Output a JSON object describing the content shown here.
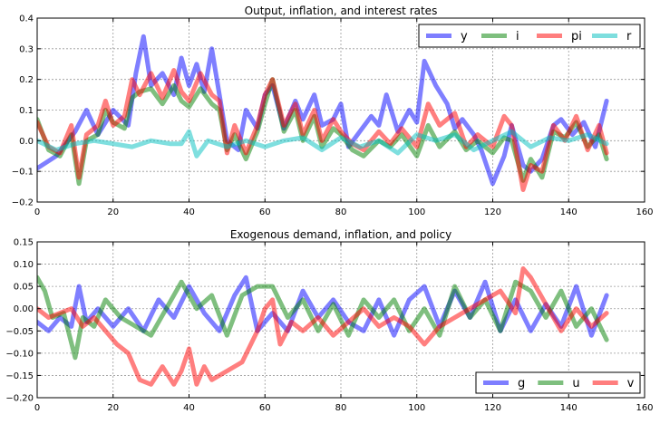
{
  "chart_data": [
    {
      "type": "line",
      "title": "Output, inflation, and interest rates",
      "xlim": [
        0,
        160
      ],
      "ylim": [
        -0.2,
        0.4
      ],
      "xticks": [
        0,
        20,
        40,
        60,
        80,
        100,
        120,
        140,
        160
      ],
      "yticks": [
        -0.2,
        -0.1,
        0.0,
        0.1,
        0.2,
        0.3,
        0.4
      ],
      "xtick_labels": [
        "0",
        "20",
        "40",
        "60",
        "80",
        "100",
        "120",
        "140",
        "160"
      ],
      "ytick_labels": [
        "−0.2",
        "−0.1",
        "0.0",
        "0.1",
        "0.2",
        "0.3",
        "0.4"
      ],
      "grid": true,
      "legend_position": "top-right",
      "series": [
        {
          "name": "y",
          "color": "#0000ff",
          "x": [
            0,
            5,
            10,
            13,
            16,
            20,
            24,
            26,
            28,
            30,
            33,
            36,
            38,
            40,
            42,
            44,
            46,
            50,
            53,
            55,
            58,
            60,
            62,
            65,
            68,
            70,
            73,
            75,
            78,
            80,
            82,
            85,
            88,
            90,
            92,
            95,
            98,
            100,
            102,
            105,
            108,
            110,
            112,
            115,
            117,
            120,
            123,
            125,
            128,
            130,
            133,
            136,
            138,
            141,
            144,
            147,
            150
          ],
          "y": [
            -0.09,
            -0.05,
            0.03,
            0.1,
            0.02,
            0.1,
            0.05,
            0.22,
            0.34,
            0.18,
            0.22,
            0.15,
            0.27,
            0.18,
            0.25,
            0.16,
            0.3,
            0.0,
            -0.03,
            0.1,
            0.04,
            0.15,
            0.18,
            0.04,
            0.13,
            0.07,
            0.15,
            0.05,
            0.07,
            0.12,
            -0.02,
            0.03,
            0.08,
            0.05,
            0.15,
            0.03,
            0.1,
            0.06,
            0.26,
            0.18,
            0.12,
            0.04,
            0.07,
            0.02,
            -0.03,
            -0.14,
            -0.05,
            0.05,
            -0.08,
            -0.1,
            -0.06,
            0.05,
            0.07,
            0.02,
            0.06,
            -0.02,
            0.13
          ]
        },
        {
          "name": "i",
          "color": "#008000",
          "x": [
            0,
            3,
            6,
            9,
            11,
            13,
            16,
            18,
            20,
            23,
            25,
            27,
            30,
            33,
            36,
            38,
            40,
            43,
            46,
            48,
            50,
            52,
            55,
            58,
            60,
            62,
            65,
            68,
            70,
            73,
            75,
            78,
            80,
            83,
            86,
            90,
            93,
            96,
            100,
            103,
            106,
            110,
            113,
            116,
            120,
            123,
            125,
            128,
            130,
            133,
            136,
            139,
            142,
            145,
            148,
            150
          ],
          "y": [
            0.07,
            -0.03,
            -0.05,
            0.02,
            -0.14,
            0.0,
            0.02,
            0.1,
            0.06,
            0.04,
            0.14,
            0.16,
            0.17,
            0.12,
            0.18,
            0.13,
            0.11,
            0.17,
            0.12,
            0.1,
            -0.03,
            0.02,
            -0.06,
            0.03,
            0.12,
            0.2,
            0.03,
            0.1,
            0.0,
            0.08,
            -0.02,
            0.04,
            0.02,
            -0.03,
            -0.05,
            0.0,
            -0.02,
            0.02,
            -0.05,
            0.05,
            -0.02,
            0.03,
            -0.03,
            0.0,
            -0.04,
            0.01,
            0.0,
            -0.13,
            -0.06,
            -0.12,
            0.03,
            0.01,
            0.06,
            -0.02,
            0.02,
            -0.06
          ]
        },
        {
          "name": "pi",
          "color": "#ff0000",
          "x": [
            0,
            3,
            6,
            9,
            11,
            13,
            16,
            18,
            20,
            23,
            25,
            27,
            30,
            33,
            36,
            38,
            40,
            43,
            46,
            48,
            50,
            52,
            55,
            58,
            60,
            62,
            65,
            68,
            70,
            73,
            75,
            78,
            80,
            83,
            86,
            90,
            93,
            96,
            100,
            103,
            106,
            110,
            113,
            116,
            120,
            123,
            125,
            128,
            130,
            133,
            136,
            139,
            142,
            145,
            148,
            150
          ],
          "y": [
            0.06,
            -0.02,
            -0.04,
            0.05,
            -0.12,
            0.02,
            0.05,
            0.13,
            0.05,
            0.08,
            0.2,
            0.15,
            0.22,
            0.14,
            0.23,
            0.16,
            0.13,
            0.22,
            0.15,
            0.13,
            -0.04,
            0.05,
            -0.04,
            0.05,
            0.15,
            0.2,
            0.05,
            0.12,
            0.02,
            0.1,
            0.0,
            0.07,
            0.03,
            -0.01,
            -0.03,
            0.03,
            -0.01,
            0.04,
            -0.02,
            0.12,
            0.05,
            0.09,
            -0.02,
            0.02,
            -0.02,
            0.08,
            0.05,
            -0.16,
            -0.08,
            -0.1,
            0.05,
            0.0,
            0.08,
            -0.03,
            0.05,
            -0.04
          ]
        },
        {
          "name": "r",
          "color": "#00bfbf",
          "x": [
            0,
            5,
            10,
            15,
            20,
            25,
            30,
            35,
            38,
            40,
            42,
            45,
            50,
            55,
            60,
            65,
            70,
            75,
            80,
            85,
            90,
            95,
            100,
            105,
            110,
            115,
            120,
            125,
            130,
            135,
            140,
            145,
            150
          ],
          "y": [
            0.0,
            -0.03,
            -0.01,
            0.0,
            -0.01,
            -0.02,
            0.0,
            -0.01,
            -0.01,
            0.03,
            -0.05,
            0.0,
            -0.02,
            0.0,
            -0.02,
            0.0,
            0.01,
            -0.03,
            0.01,
            -0.02,
            0.0,
            -0.04,
            0.02,
            0.0,
            0.02,
            -0.03,
            0.0,
            0.03,
            -0.02,
            0.01,
            0.0,
            0.02,
            -0.01
          ]
        }
      ]
    },
    {
      "type": "line",
      "title": "Exogenous demand, inflation, and policy",
      "xlim": [
        0,
        160
      ],
      "ylim": [
        -0.2,
        0.15
      ],
      "xticks": [
        0,
        20,
        40,
        60,
        80,
        100,
        120,
        140,
        160
      ],
      "yticks": [
        -0.2,
        -0.15,
        -0.1,
        -0.05,
        0.0,
        0.05,
        0.1,
        0.15
      ],
      "xtick_labels": [
        "0",
        "20",
        "40",
        "60",
        "80",
        "100",
        "120",
        "140",
        "160"
      ],
      "ytick_labels": [
        "−0.20",
        "−0.15",
        "−0.10",
        "−0.05",
        "0.00",
        "0.05",
        "0.10",
        "0.15"
      ],
      "grid": true,
      "legend_position": "bottom-right",
      "series": [
        {
          "name": "g",
          "color": "#0000ff",
          "x": [
            0,
            3,
            6,
            9,
            11,
            13,
            16,
            20,
            24,
            28,
            32,
            36,
            40,
            44,
            48,
            52,
            55,
            58,
            62,
            66,
            70,
            74,
            78,
            82,
            86,
            90,
            94,
            98,
            102,
            106,
            110,
            114,
            118,
            122,
            126,
            130,
            134,
            138,
            142,
            146,
            150
          ],
          "y": [
            -0.03,
            -0.05,
            -0.02,
            -0.04,
            0.05,
            -0.03,
            0.0,
            -0.04,
            0.0,
            -0.05,
            0.02,
            -0.02,
            0.05,
            -0.01,
            -0.05,
            0.03,
            0.07,
            -0.05,
            -0.01,
            -0.05,
            0.04,
            -0.02,
            0.02,
            -0.03,
            -0.05,
            0.02,
            -0.06,
            0.02,
            0.05,
            -0.04,
            0.04,
            -0.02,
            0.06,
            -0.05,
            0.02,
            -0.05,
            0.01,
            -0.04,
            0.05,
            -0.06,
            0.03
          ]
        },
        {
          "name": "u",
          "color": "#008000",
          "x": [
            0,
            2,
            4,
            7,
            10,
            12,
            15,
            18,
            22,
            26,
            30,
            34,
            38,
            42,
            46,
            50,
            54,
            58,
            62,
            66,
            70,
            74,
            78,
            82,
            86,
            90,
            94,
            98,
            102,
            106,
            110,
            114,
            118,
            122,
            126,
            130,
            134,
            138,
            142,
            146,
            150
          ],
          "y": [
            0.07,
            0.04,
            -0.02,
            -0.01,
            -0.11,
            -0.02,
            -0.04,
            0.02,
            -0.02,
            -0.04,
            -0.06,
            0.0,
            0.06,
            0.0,
            0.03,
            -0.06,
            0.03,
            0.05,
            0.05,
            -0.02,
            0.02,
            -0.05,
            0.01,
            -0.06,
            0.02,
            -0.02,
            0.02,
            -0.05,
            0.0,
            -0.06,
            0.05,
            -0.02,
            0.02,
            -0.05,
            0.06,
            0.04,
            -0.02,
            0.04,
            -0.04,
            0.0,
            -0.07
          ]
        },
        {
          "name": "v",
          "color": "#ff0000",
          "x": [
            0,
            3,
            6,
            9,
            12,
            15,
            18,
            21,
            24,
            27,
            30,
            33,
            36,
            38,
            40,
            42,
            44,
            46,
            50,
            54,
            58,
            60,
            62,
            64,
            67,
            70,
            74,
            78,
            82,
            86,
            90,
            94,
            98,
            102,
            106,
            110,
            114,
            118,
            122,
            126,
            128,
            130,
            134,
            138,
            142,
            146,
            150
          ],
          "y": [
            0.0,
            -0.02,
            -0.01,
            0.0,
            -0.04,
            -0.02,
            -0.05,
            -0.08,
            -0.1,
            -0.16,
            -0.17,
            -0.13,
            -0.17,
            -0.14,
            -0.09,
            -0.17,
            -0.13,
            -0.16,
            -0.14,
            -0.12,
            -0.05,
            0.0,
            0.02,
            -0.08,
            -0.03,
            -0.05,
            -0.02,
            -0.06,
            -0.03,
            0.0,
            -0.04,
            -0.02,
            -0.04,
            -0.08,
            -0.04,
            -0.02,
            0.0,
            0.02,
            0.04,
            -0.01,
            0.09,
            0.07,
            0.01,
            -0.05,
            0.0,
            -0.04,
            -0.01
          ]
        }
      ]
    }
  ]
}
